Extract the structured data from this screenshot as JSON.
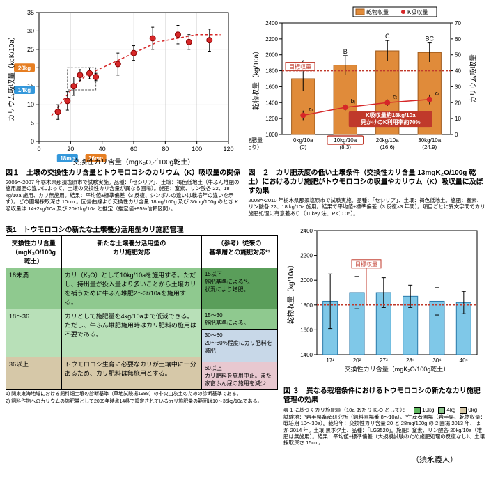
{
  "fig1": {
    "type": "scatter-with-trend",
    "xlabel": "交換性カリ含量（mgK₂O／100g乾土）",
    "ylabel": "カリウム吸収量（kgK/10a）",
    "xlim": [
      0,
      120
    ],
    "ylim": [
      0,
      35
    ],
    "xticks": [
      0,
      20,
      40,
      60,
      80,
      100,
      120
    ],
    "yticks": [
      0,
      5,
      10,
      15,
      20,
      25,
      30,
      35
    ],
    "points": [
      {
        "x": 12,
        "y": 8,
        "err": 2
      },
      {
        "x": 18,
        "y": 11,
        "err": 2.5
      },
      {
        "x": 22,
        "y": 15,
        "err": 2.5
      },
      {
        "x": 26,
        "y": 18,
        "err": 1.5
      },
      {
        "x": 32,
        "y": 18.5,
        "err": 1.5
      },
      {
        "x": 36,
        "y": 17.5,
        "err": 1
      },
      {
        "x": 50,
        "y": 21,
        "err": 3
      },
      {
        "x": 60,
        "y": 24,
        "err": 2
      },
      {
        "x": 72,
        "y": 28,
        "err": 3
      },
      {
        "x": 88,
        "y": 29,
        "err": 2.5
      },
      {
        "x": 95,
        "y": 27,
        "err": 2
      },
      {
        "x": 108,
        "y": 27.5,
        "err": 3
      }
    ],
    "curve": [
      [
        8,
        7
      ],
      [
        15,
        11
      ],
      [
        22,
        15
      ],
      [
        30,
        18
      ],
      [
        40,
        20
      ],
      [
        55,
        23
      ],
      [
        75,
        27
      ],
      [
        100,
        29
      ],
      [
        115,
        29
      ]
    ],
    "marker_color": "#d62728",
    "curve_color": "#d62728",
    "box_color": "#333",
    "badge20": {
      "text": "20kg",
      "color": "#e67e22"
    },
    "badge14": {
      "text": "14kg",
      "color": "#3498db"
    },
    "badge18": {
      "text": "18mg",
      "color": "#3498db"
    },
    "badge36": {
      "text": "36mg",
      "color": "#e67e22"
    },
    "caption": "図１　土壌の交換性カリ含量とトウモロコシのカリウム（K）吸収量の関係",
    "note": "2005〜2007 年栃木県那須塩原市で試験実施。品種：「セシリア」、土壌：褐色低地土（牛ふん堆肥の施用履歴の違いによって、土壌の交換性カリ含量が異なる圃場）。施肥：窒素、リン酸各 22、18 kg/10a 施用、カリ無施用。結果：平均値±標準偏差（3 反復、シンボルの違いは栽培年の違いを示す）。どの圃場採取深さ 10cm 。回帰曲線より交換性カリ含量 18mg/100g 及び 36mg/100g のとき K 吸収量は 14±2kg/10a 及び 20±1kg/10a と推定（推定値±95%信頼区間）。"
  },
  "fig2": {
    "type": "bar+line",
    "xlabel": "カリ施肥量\n（Kあたり）",
    "xcat": [
      "0kg/10a",
      "10kg/10a",
      "20kg/10a",
      "30kg/10a"
    ],
    "xcat2": [
      "(0)",
      "(8.3)",
      "(16.6)",
      "(24.9)"
    ],
    "y1label": "乾物収量（kg/10a）",
    "y2label": "カリウム吸収量",
    "y1lim": [
      1000,
      2400
    ],
    "y1ticks": [
      1000,
      1200,
      1400,
      1600,
      1800,
      2000,
      2200,
      2400
    ],
    "y2lim": [
      0,
      70
    ],
    "y2ticks": [
      0,
      10,
      20,
      30,
      40,
      50,
      60,
      70
    ],
    "bars": [
      1700,
      1870,
      2050,
      2030
    ],
    "bar_err": [
      150,
      120,
      130,
      120
    ],
    "bar_color": "#e08b3a",
    "bar_border": "#a05a1a",
    "letters_top": [
      "A",
      "B",
      "C",
      "BC"
    ],
    "line": [
      12,
      17,
      20,
      22
    ],
    "line_err": [
      3,
      2,
      2,
      3
    ],
    "line_letters": [
      "a₍",
      "b₍",
      "c₍",
      "c₍"
    ],
    "line_color": "#d62728",
    "target_line": 1800,
    "target_label": "目標収量",
    "target_color": "#c0392b",
    "callout": {
      "text1": "K吸収量約18kg/10a",
      "text2": "見かけのK利用率約70%",
      "bg": "#c0392b"
    },
    "legend": {
      "bar": "乾物収量",
      "line": "K吸収量"
    },
    "highlight_idx": 1,
    "caption": "図　２　カリ肥沃度の低い土壌条件（交換性カリ含量 13mgK₂O/100g 乾土）におけるカリ施肥がトウモロコシの収量やカリウム（K）吸収量に及ぼす効果",
    "note": "2008〜2010 年栃木県那須塩原市で試験実施。品種：「セシリア」、土壌：褐色低地土。施肥：窒素、リン酸各 22、18 kg/10a 施用。結果で平均値±標準偏差（3 反復×3 年間）。項目ごとに異文字間でカリ施肥処理に有意差あり（Tukey 法、P＜0.05）。"
  },
  "table1": {
    "title": "表1　トウモロコシの新たな土壌養分活用型カリ施肥管理",
    "headers": [
      "交換性カリ含量\n（mgK₂O/100g乾土）",
      "新たな土壌養分活用型の\nカリ施肥対応",
      "（参考）従来の\n基準層との施肥対応*¹"
    ],
    "rows": [
      {
        "k": "18未満",
        "action": "カリ（K₂O）として10kg/10aを施用する。ただし、持出量が投入量より多いことから土壌カリを補うために牛ふん堆肥2〜3t/10aを施用する。",
        "ref": "15以下\n施肥基準による*²。\n状況により増肥。",
        "bg": "#8fc98f",
        "refbg": "#5a9e5a"
      },
      {
        "k": "18〜36",
        "action": "カリとして施肥量を4kg/10aまで低減できる。ただし、牛ふん堆肥施用時はカリ肥料の施用は不要である。",
        "ref": "15〜30\n施肥基準による。",
        "bg": "#b8e0b8",
        "refbg": "#8fc98f"
      },
      {
        "k": "",
        "action": "",
        "ref": "30〜60\n20〜80%程度にカリ肥料を減肥",
        "bg": "",
        "refbg": "#c8d8e8"
      },
      {
        "k": "36以上",
        "action": "トウモロコシ生育に必要なカリが土壤中に十分あるため、カリ肥料は無施用とする。",
        "ref": "",
        "bg": "#d6c8a8",
        "refbg": ""
      },
      {
        "k": "",
        "action": "",
        "ref": "60以上\nカリ肥料を施用中止。また家畜ふん尿の施用を減少",
        "bg": "",
        "refbg": "#e8c8d0"
      }
    ],
    "notes": [
      "1) 関東東海地域における飼料畑土壌の診断基準（草地試験場1988）の非火山灰土のための診断基準である。",
      "2) 飼料作物へのカリウムの施肥量として2009年時点14県で設定されているカリ施肥量の範囲は10〜35kg/10aである。"
    ]
  },
  "fig3": {
    "type": "bar",
    "xlabel": "交換性カリ含量（mgK₂O/100g乾土）",
    "ylabel": "乾物収量（kg/10a）",
    "ylim": [
      1400,
      2400
    ],
    "yticks": [
      1400,
      1600,
      1800,
      2000,
      2200,
      2400
    ],
    "xcat": [
      "17¹",
      "20²",
      "27³",
      "28⁴",
      "30⁴",
      "40⁴"
    ],
    "bars": [
      1830,
      1900,
      1900,
      1870,
      1830,
      1820
    ],
    "err": [
      220,
      130,
      120,
      90,
      110,
      90
    ],
    "bar_color": "#7fc8e8",
    "bar_border": "#2a7aaa",
    "target_line": 1800,
    "target_label": "目標収量",
    "target_color": "#c0392b",
    "legend": {
      "items": [
        "10kg",
        "4kg",
        "0kg"
      ],
      "colors": [
        "#5eb85e",
        "#8fc98f",
        "#d6c8a8"
      ]
    },
    "caption": "図 ３　異なる栽培条件におけるトウモロコシの新たなカリ施肥管理の効果",
    "note_pre": "表１に基づくカリ施肥量（10a あたり K₂O として）：",
    "note": "試験地：¹岩手県畜産研究所（飼料圃場番 8〜10a）、²生産者圃場（岩手県、乾物収量：戦培期 10〜30a）。栽培年：交換性カリ含量 20 と 28mg/100g の 2 圃場 2013 年、ほか 2014 年。土壌 黒ボク土、品種：「LG3520」。施肥：窒素、リン酸各 20kg/10a（堆肥は無施用）。結果：平均値±標準偏差（大規模試験のため施肥処理の反復なし）、土壌採取深さ 15cm。"
  },
  "author": "（須永義人）"
}
